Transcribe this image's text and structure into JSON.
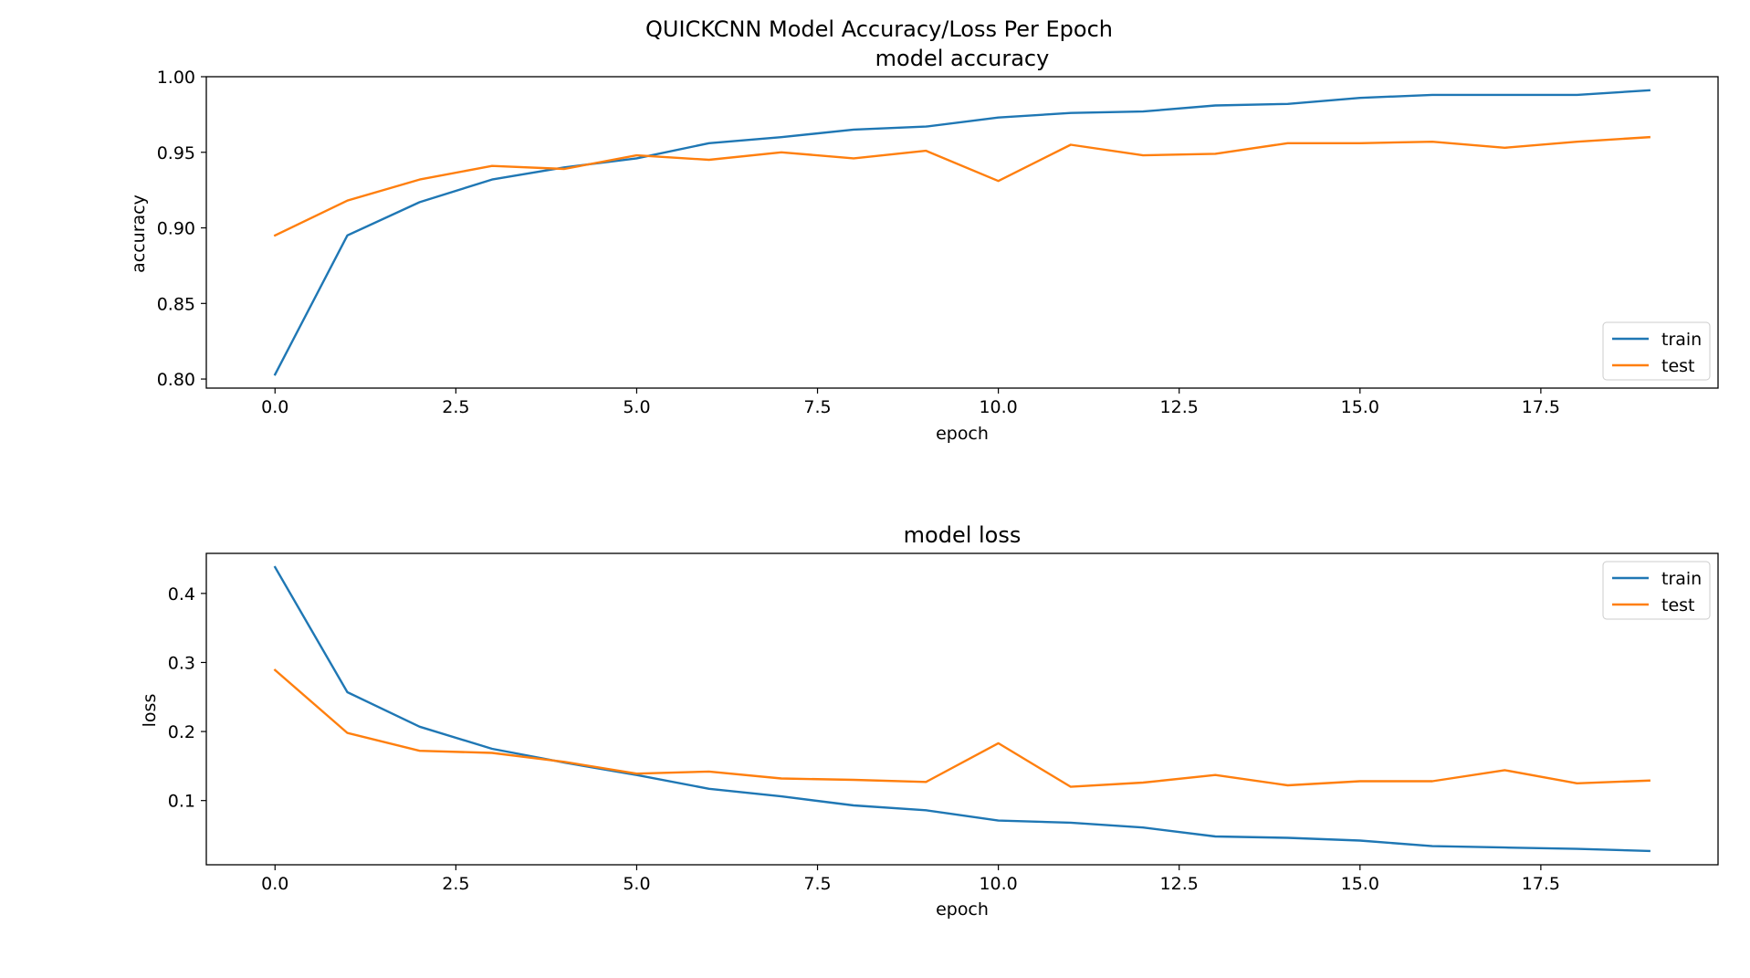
{
  "figure_title": "QUICKCNN Model Accuracy/Loss Per Epoch",
  "chart_data": [
    {
      "type": "line",
      "title": "model accuracy",
      "xlabel": "epoch",
      "ylabel": "accuracy",
      "xlim": [
        -0.95,
        19.95
      ],
      "ylim": [
        0.794,
        1.0
      ],
      "xticks": [
        0.0,
        2.5,
        5.0,
        7.5,
        10.0,
        12.5,
        15.0,
        17.5
      ],
      "xtick_labels": [
        "0.0",
        "2.5",
        "5.0",
        "7.5",
        "10.0",
        "12.5",
        "15.0",
        "17.5"
      ],
      "yticks": [
        0.8,
        0.85,
        0.9,
        0.95,
        1.0
      ],
      "ytick_labels": [
        "0.80",
        "0.85",
        "0.90",
        "0.95",
        "1.00"
      ],
      "grid": false,
      "legend_position": "lower-right",
      "x": [
        0,
        1,
        2,
        3,
        4,
        5,
        6,
        7,
        8,
        9,
        10,
        11,
        12,
        13,
        14,
        15,
        16,
        17,
        18,
        19
      ],
      "series": [
        {
          "name": "train",
          "color": "#1f77b4",
          "values": [
            0.803,
            0.895,
            0.917,
            0.932,
            0.94,
            0.946,
            0.956,
            0.96,
            0.965,
            0.967,
            0.973,
            0.976,
            0.977,
            0.981,
            0.982,
            0.986,
            0.988,
            0.988,
            0.988,
            0.991
          ]
        },
        {
          "name": "test",
          "color": "#ff7f0e",
          "values": [
            0.895,
            0.918,
            0.932,
            0.941,
            0.939,
            0.948,
            0.945,
            0.95,
            0.946,
            0.951,
            0.931,
            0.955,
            0.948,
            0.949,
            0.956,
            0.956,
            0.957,
            0.953,
            0.957,
            0.96
          ]
        }
      ]
    },
    {
      "type": "line",
      "title": "model loss",
      "xlabel": "epoch",
      "ylabel": "loss",
      "xlim": [
        -0.95,
        19.95
      ],
      "ylim": [
        0.007,
        0.458
      ],
      "xticks": [
        0.0,
        2.5,
        5.0,
        7.5,
        10.0,
        12.5,
        15.0,
        17.5
      ],
      "xtick_labels": [
        "0.0",
        "2.5",
        "5.0",
        "7.5",
        "10.0",
        "12.5",
        "15.0",
        "17.5"
      ],
      "yticks": [
        0.1,
        0.2,
        0.3,
        0.4
      ],
      "ytick_labels": [
        "0.1",
        "0.2",
        "0.3",
        "0.4"
      ],
      "grid": false,
      "legend_position": "upper-right",
      "x": [
        0,
        1,
        2,
        3,
        4,
        5,
        6,
        7,
        8,
        9,
        10,
        11,
        12,
        13,
        14,
        15,
        16,
        17,
        18,
        19
      ],
      "series": [
        {
          "name": "train",
          "color": "#1f77b4",
          "values": [
            0.438,
            0.257,
            0.207,
            0.175,
            0.155,
            0.137,
            0.117,
            0.106,
            0.093,
            0.086,
            0.071,
            0.068,
            0.061,
            0.048,
            0.046,
            0.042,
            0.034,
            0.032,
            0.03,
            0.027
          ]
        },
        {
          "name": "test",
          "color": "#ff7f0e",
          "values": [
            0.289,
            0.198,
            0.172,
            0.169,
            0.156,
            0.139,
            0.142,
            0.132,
            0.13,
            0.127,
            0.183,
            0.12,
            0.126,
            0.137,
            0.122,
            0.128,
            0.128,
            0.144,
            0.125,
            0.129
          ]
        }
      ]
    }
  ]
}
